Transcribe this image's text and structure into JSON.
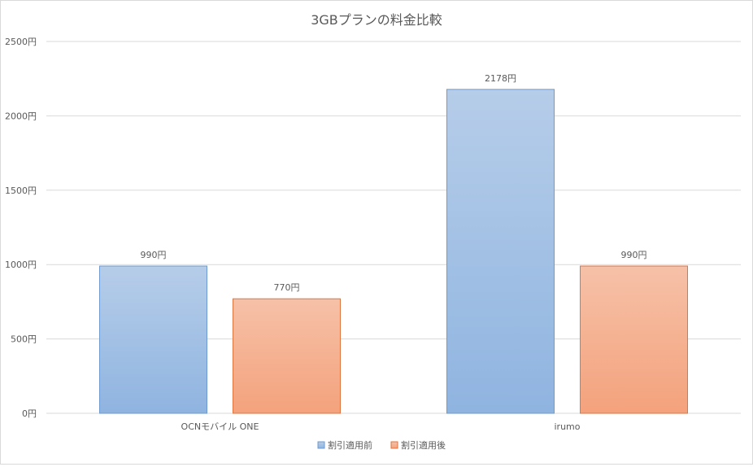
{
  "chart_data": {
    "type": "bar",
    "title": "3GBプランの料金比較",
    "categories": [
      "OCNモバイル ONE",
      "irumo"
    ],
    "series": [
      {
        "name": "割引適用前",
        "values": [
          990,
          2178
        ],
        "data_labels": [
          "990円",
          "2178円"
        ],
        "color": "#8fb4e0"
      },
      {
        "name": "割引適用後",
        "values": [
          770,
          990
        ],
        "data_labels": [
          "770円",
          "990円"
        ],
        "color": "#f4a27c"
      }
    ],
    "yticks": [
      0,
      500,
      1000,
      1500,
      2000,
      2500
    ],
    "ytick_labels": [
      "0円",
      "500円",
      "1000円",
      "1500円",
      "2000円",
      "2500円"
    ],
    "ylim": [
      0,
      2500
    ],
    "grid": true,
    "legend_position": "bottom"
  }
}
